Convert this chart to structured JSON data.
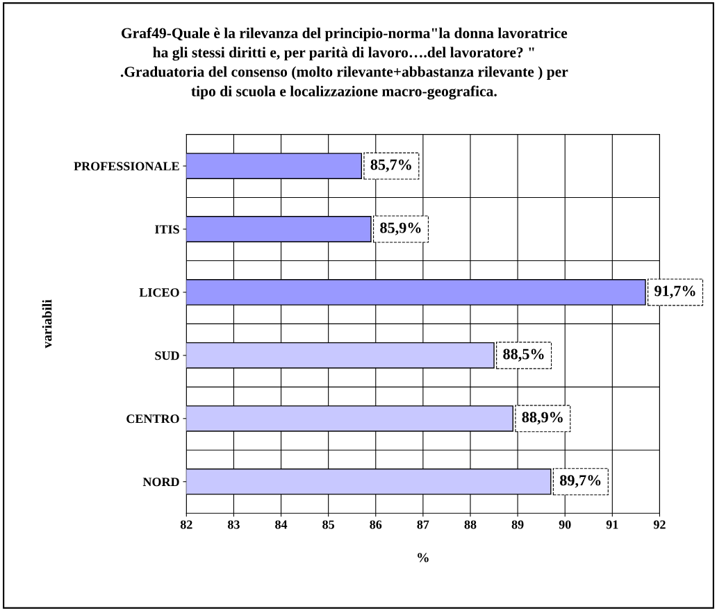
{
  "chart_data": {
    "type": "bar",
    "orientation": "horizontal",
    "title": "Graf49-Quale è la rilevanza del principio-norma\"la donna lavoratrice\nha gli stessi diritti e, per parità di lavoro….del lavoratore? \"\n.Graduatoria del consenso (molto rilevante+abbastanza rilevante ) per\ntipo di scuola e localizzazione macro-geografica.",
    "categories": [
      "PROFESSIONALE",
      "ITIS",
      "LICEO",
      "SUD",
      "CENTRO",
      "NORD"
    ],
    "values": [
      85.7,
      85.9,
      91.7,
      88.5,
      88.9,
      89.7
    ],
    "value_labels": [
      "85,7%",
      "85,9%",
      "91,7%",
      "88,5%",
      "88,9%",
      "89,7%"
    ],
    "colors": [
      "#9999ff",
      "#9999ff",
      "#9999ff",
      "#c8c8ff",
      "#c8c8ff",
      "#c8c8ff"
    ],
    "xlim": [
      82,
      92
    ],
    "xticks": [
      82,
      83,
      84,
      85,
      86,
      87,
      88,
      89,
      90,
      91,
      92
    ],
    "xlabel": "%",
    "ylabel": "variabili",
    "grid": true,
    "legend": false
  }
}
